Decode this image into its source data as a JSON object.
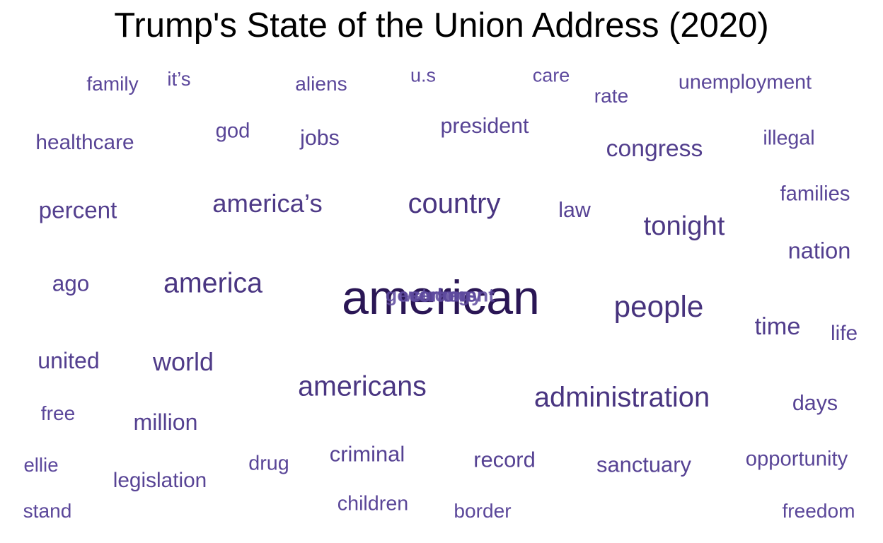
{
  "chart_data": {
    "type": "wordcloud",
    "title": "Trump's State of the Union Address (2020)",
    "colors": {
      "darkest": "#2a1655",
      "lightest": "#5e4a9e"
    },
    "words": [
      {
        "text": "american",
        "weight": 100
      },
      {
        "text": "people",
        "weight": 54
      },
      {
        "text": "administration",
        "weight": 50
      },
      {
        "text": "country",
        "weight": 50
      },
      {
        "text": "americans",
        "weight": 49
      },
      {
        "text": "america",
        "weight": 49
      },
      {
        "text": "tonight",
        "weight": 47
      },
      {
        "text": "america’s",
        "weight": 44
      },
      {
        "text": "world",
        "weight": 43
      },
      {
        "text": "time",
        "weight": 40
      },
      {
        "text": "congress",
        "weight": 39
      },
      {
        "text": "percent",
        "weight": 38
      },
      {
        "text": "nation",
        "weight": 37
      },
      {
        "text": "united",
        "weight": 36
      },
      {
        "text": "million",
        "weight": 36
      },
      {
        "text": "ago",
        "weight": 35
      },
      {
        "text": "record",
        "weight": 34
      },
      {
        "text": "criminal",
        "weight": 34
      },
      {
        "text": "sanctuary",
        "weight": 34
      },
      {
        "text": "days",
        "weight": 33
      },
      {
        "text": "president",
        "weight": 33
      },
      {
        "text": "law",
        "weight": 33
      },
      {
        "text": "jobs",
        "weight": 33
      },
      {
        "text": "life",
        "weight": 32
      },
      {
        "text": "healthcare",
        "weight": 32
      },
      {
        "text": "legislation",
        "weight": 32
      },
      {
        "text": "families",
        "weight": 31
      },
      {
        "text": "opportunity",
        "weight": 31
      },
      {
        "text": "god",
        "weight": 31
      },
      {
        "text": "illegal",
        "weight": 30
      },
      {
        "text": "children",
        "weight": 30
      },
      {
        "text": "drug",
        "weight": 30
      },
      {
        "text": "unemployment",
        "weight": 30
      },
      {
        "text": "free",
        "weight": 29
      },
      {
        "text": "freedom",
        "weight": 29
      },
      {
        "text": "rate",
        "weight": 29
      },
      {
        "text": "border",
        "weight": 29
      },
      {
        "text": "ellie",
        "weight": 28
      },
      {
        "text": "family",
        "weight": 29
      },
      {
        "text": "aliens",
        "weight": 29
      },
      {
        "text": "stand",
        "weight": 29
      },
      {
        "text": "it’s",
        "weight": 28
      },
      {
        "text": "u.s",
        "weight": 27
      },
      {
        "text": "care",
        "weight": 27
      },
      {
        "text": "government",
        "weight": 27
      },
      {
        "text": "economy",
        "weight": 27
      },
      {
        "text": "strong",
        "weight": 27
      },
      {
        "text": "workers",
        "weight": 27
      }
    ]
  }
}
